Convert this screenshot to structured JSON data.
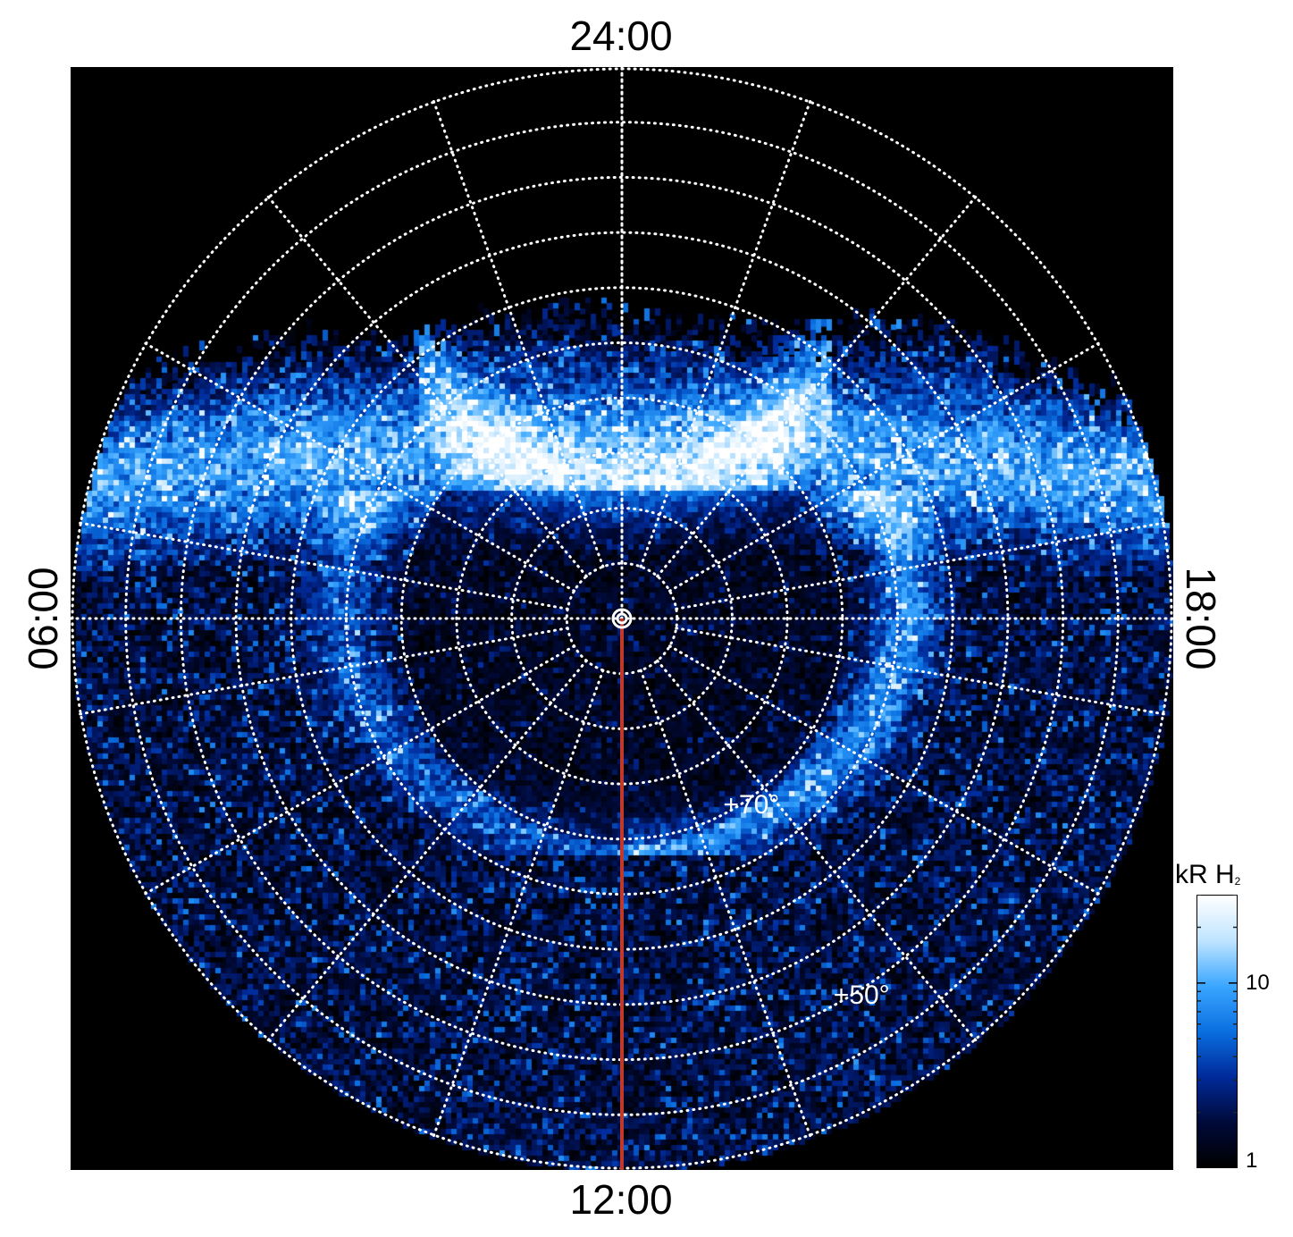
{
  "local_time_labels": {
    "top": "24:00",
    "bottom": "12:00",
    "left": "06:00",
    "right": "18:00"
  },
  "latitude_labels": [
    {
      "text": "+70°",
      "latitude": 70
    },
    {
      "text": "+50°",
      "latitude": 50
    }
  ],
  "grid": {
    "latitude_circles_deg": [
      85,
      80,
      75,
      70,
      65,
      60,
      55,
      50,
      45
    ],
    "meridian_spacing_deg": 20,
    "style": "dotted white"
  },
  "central_meridian_line": {
    "local_time": "12:00",
    "color": "#c0392b"
  },
  "colorbar": {
    "title": "kR H",
    "title_subscript": "2",
    "scale": "log",
    "range": [
      1,
      30
    ],
    "tick_labels": [
      {
        "text": "10",
        "value": 10
      },
      {
        "text": "1",
        "value": 1
      }
    ],
    "colors": [
      "#000000",
      "#000a3a",
      "#002a9a",
      "#0a6fe0",
      "#3aa6ff",
      "#bfe4ff",
      "#ffffff"
    ]
  },
  "colors": {
    "background": "#000000",
    "grid": "#ffffff",
    "aurora_accent": "#1e90ff"
  }
}
